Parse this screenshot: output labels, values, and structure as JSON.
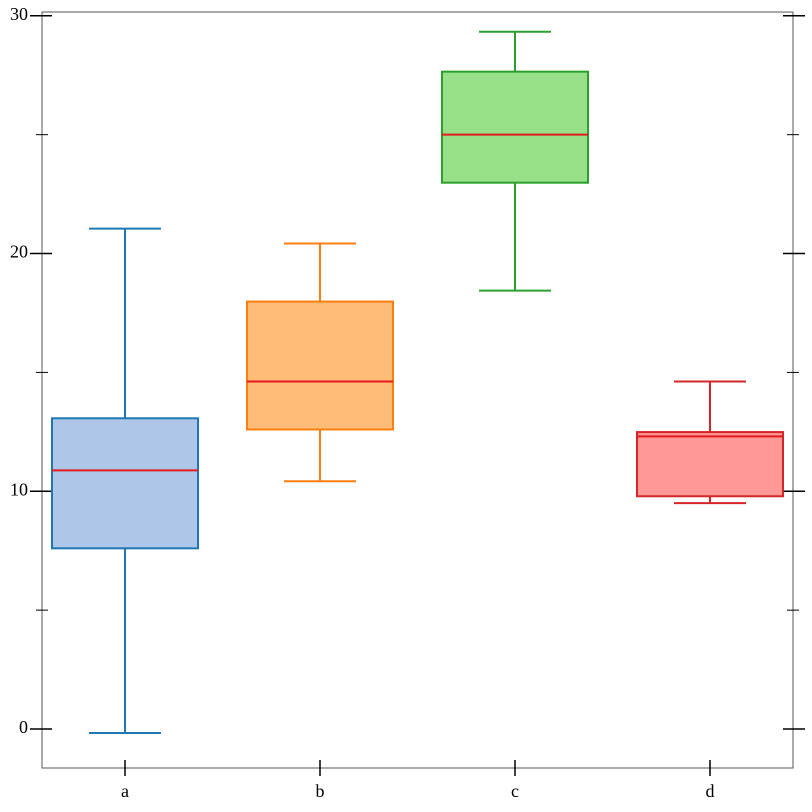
{
  "chart_data": {
    "type": "box",
    "categories": [
      "a",
      "b",
      "c",
      "d"
    ],
    "boxes": [
      {
        "min": -0.17,
        "q1": 7.6,
        "median": 10.88,
        "q3": 13.07,
        "max": 21.05,
        "fill": "#aec7e8",
        "stroke": "#1f77b4"
      },
      {
        "min": 10.42,
        "q1": 12.6,
        "median": 14.62,
        "q3": 17.98,
        "max": 20.42,
        "fill": "#ffbb78",
        "stroke": "#ff7f0e"
      },
      {
        "min": 18.44,
        "q1": 22.98,
        "median": 25.0,
        "q3": 27.65,
        "max": 29.33,
        "fill": "#98df8a",
        "stroke": "#2ca02c"
      },
      {
        "min": 9.5,
        "q1": 9.79,
        "median": 12.31,
        "q3": 12.49,
        "max": 14.62,
        "fill": "#ff9896",
        "stroke": "#d62728"
      }
    ],
    "median_color": "#e31a1c",
    "ylim": [
      -1.64,
      30.16
    ],
    "yticks": [
      0,
      10,
      20,
      30
    ],
    "yminorticks": [
      5,
      15,
      25
    ]
  }
}
